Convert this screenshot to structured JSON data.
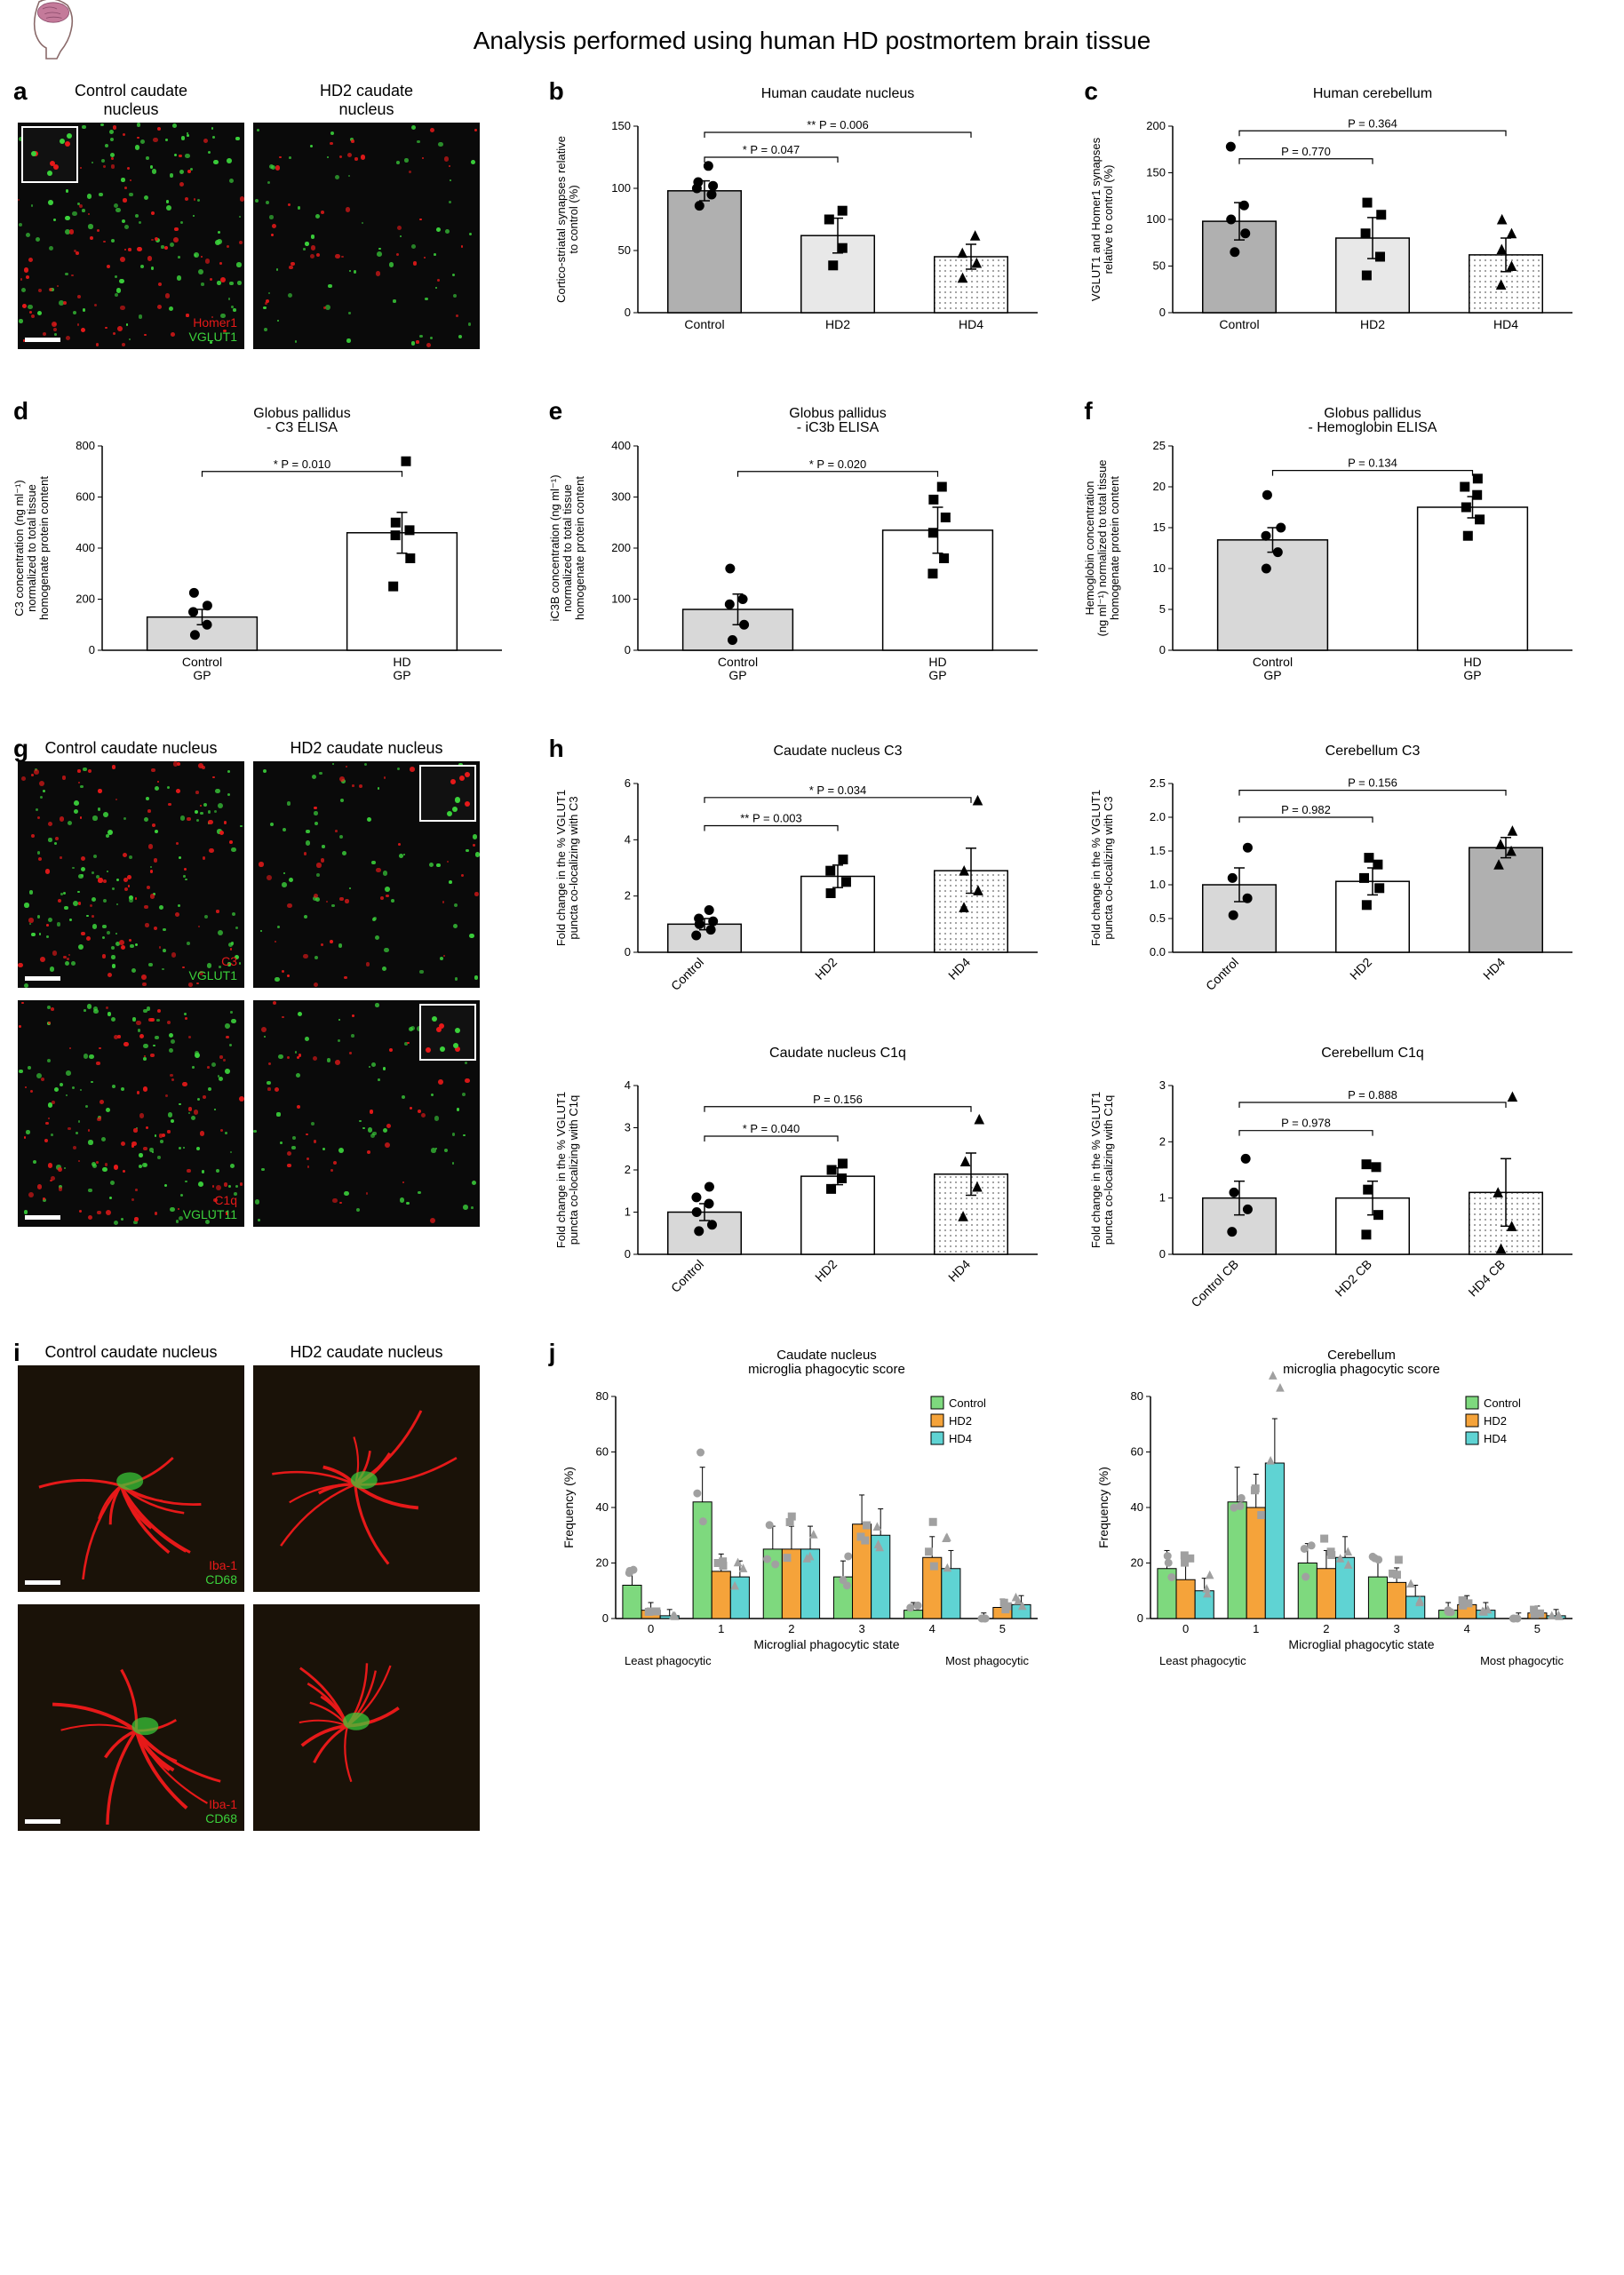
{
  "page_title": "Analysis performed using human HD postmortem brain tissue",
  "colors": {
    "bar_gray": "#b0b0b0",
    "bar_light": "#e8e8e8",
    "bar_hatch": "#cccccc",
    "text": "#000000",
    "axis": "#000000",
    "red": "#e61919",
    "green": "#3bd13b",
    "legend_green": "#7ed97e",
    "legend_orange": "#f5a33a",
    "legend_cyan": "#5fd3d3",
    "point_gray": "#a0a0a0"
  },
  "panel_a": {
    "letter": "a",
    "left_header": "Control caudate\nnucleus",
    "right_header": "HD2 caudate\nnucleus",
    "label_red": "Homer1",
    "label_green": "VGLUT1"
  },
  "panel_b": {
    "letter": "b",
    "title": "Human caudate nucleus",
    "ylabel": "Cortico-striatal synapses relative\nto control (%)",
    "categories": [
      "Control",
      "HD2",
      "HD4"
    ],
    "values": [
      98,
      62,
      45
    ],
    "errors": [
      8,
      14,
      10
    ],
    "points": [
      [
        86,
        95,
        100,
        102,
        105,
        118
      ],
      [
        38,
        52,
        75,
        82
      ],
      [
        28,
        40,
        48,
        62
      ]
    ],
    "markers": [
      "circle",
      "square",
      "triangle"
    ],
    "sig": [
      {
        "i1": 0,
        "i2": 2,
        "label": "** P = 0.006",
        "y": 145
      },
      {
        "i1": 0,
        "i2": 1,
        "label": "* P = 0.047",
        "y": 125
      }
    ],
    "ylim": [
      0,
      150
    ],
    "ytick": 50,
    "fills": [
      "#b0b0b0",
      "#e8e8e8",
      "pattern"
    ]
  },
  "panel_c": {
    "letter": "c",
    "title": "Human cerebellum",
    "ylabel": "VGLUT1 and Homer1 synapses\nrelative to control (%)",
    "categories": [
      "Control",
      "HD2",
      "HD4"
    ],
    "values": [
      98,
      80,
      62
    ],
    "errors": [
      20,
      22,
      18
    ],
    "points": [
      [
        65,
        85,
        100,
        115,
        178
      ],
      [
        40,
        60,
        85,
        105,
        118
      ],
      [
        30,
        50,
        68,
        85,
        100
      ]
    ],
    "markers": [
      "circle",
      "square",
      "triangle"
    ],
    "sig": [
      {
        "i1": 0,
        "i2": 2,
        "label": "P = 0.364",
        "y": 195
      },
      {
        "i1": 0,
        "i2": 1,
        "label": "P = 0.770",
        "y": 165
      }
    ],
    "ylim": [
      0,
      200
    ],
    "ytick": 50,
    "fills": [
      "#b0b0b0",
      "#e8e8e8",
      "pattern"
    ]
  },
  "panel_d": {
    "letter": "d",
    "title": "Globus pallidus\n- C3 ELISA",
    "ylabel": "C3 concentration (ng ml⁻¹)\nnormalized to total tissue\nhomogenate protein content",
    "categories": [
      "Control\nGP",
      "HD\nGP"
    ],
    "values": [
      130,
      460
    ],
    "errors": [
      30,
      80
    ],
    "points": [
      [
        60,
        100,
        150,
        175,
        225
      ],
      [
        250,
        360,
        450,
        470,
        500,
        740
      ]
    ],
    "markers": [
      "circle",
      "square"
    ],
    "sig": [
      {
        "i1": 0,
        "i2": 1,
        "label": "* P = 0.010",
        "y": 700,
        "side": "mid"
      }
    ],
    "ylim": [
      0,
      800
    ],
    "ytick": 200,
    "fills": [
      "#d8d8d8",
      "#ffffff"
    ]
  },
  "panel_e": {
    "letter": "e",
    "title": "Globus pallidus\n- iC3b ELISA",
    "ylabel": "iC3B concentration (ng ml⁻¹)\nnormalized to total tissue\nhomogenate protein content",
    "categories": [
      "Control\nGP",
      "HD\nGP"
    ],
    "values": [
      80,
      235
    ],
    "errors": [
      30,
      45
    ],
    "points": [
      [
        20,
        50,
        90,
        100,
        160
      ],
      [
        150,
        180,
        230,
        260,
        295,
        320
      ]
    ],
    "markers": [
      "circle",
      "square"
    ],
    "sig": [
      {
        "i1": 0,
        "i2": 1,
        "label": "* P = 0.020",
        "y": 350,
        "side": "mid"
      }
    ],
    "ylim": [
      0,
      400
    ],
    "ytick": 100,
    "fills": [
      "#d8d8d8",
      "#ffffff"
    ]
  },
  "panel_f": {
    "letter": "f",
    "title": "Globus pallidus\n- Hemoglobin ELISA",
    "ylabel": "Hemoglobin concentration\n(ng ml⁻¹) normalized to total tissue\nhomogenate protein content",
    "categories": [
      "Control\nGP",
      "HD\nGP"
    ],
    "values": [
      13.5,
      17.5
    ],
    "errors": [
      1.5,
      1.3
    ],
    "points": [
      [
        10,
        12,
        14,
        15,
        19
      ],
      [
        14,
        16,
        17.5,
        19,
        20,
        21
      ]
    ],
    "markers": [
      "circle",
      "square"
    ],
    "sig": [
      {
        "i1": 0,
        "i2": 1,
        "label": "P = 0.134",
        "y": 22,
        "side": "mid"
      }
    ],
    "ylim": [
      0,
      25
    ],
    "ytick": 5,
    "fills": [
      "#d8d8d8",
      "#ffffff"
    ]
  },
  "panel_g": {
    "letter": "g",
    "left_header": "Control caudate nucleus",
    "right_header": "HD2 caudate nucleus",
    "row1_red": "C3",
    "row1_green": "VGLUT1",
    "row2_red": "C1q",
    "row2_green": "VGLUT11"
  },
  "panel_h": {
    "letter": "h",
    "charts": [
      {
        "title": "Caudate nucleus C3",
        "ylabel": "Fold change in the % VGLUT1\npuncta co-localizing with C3",
        "categories": [
          "Control",
          "HD2",
          "HD4"
        ],
        "values": [
          1.0,
          2.7,
          2.9
        ],
        "errors": [
          0.2,
          0.4,
          0.8
        ],
        "points": [
          [
            0.6,
            0.8,
            1.0,
            1.1,
            1.2,
            1.5
          ],
          [
            2.1,
            2.5,
            2.9,
            3.3
          ],
          [
            1.6,
            2.2,
            2.9,
            5.4
          ]
        ],
        "markers": [
          "circle",
          "square",
          "triangle"
        ],
        "sig": [
          {
            "i1": 0,
            "i2": 2,
            "label": "* P = 0.034",
            "y": 5.5
          },
          {
            "i1": 0,
            "i2": 1,
            "label": "** P = 0.003",
            "y": 4.5
          }
        ],
        "ylim": [
          0,
          6
        ],
        "ytick": 2,
        "fills": [
          "#d8d8d8",
          "#ffffff",
          "pattern"
        ]
      },
      {
        "title": "Cerebellum C3",
        "ylabel": "Fold change in the % VGLUT1\npuncta co-localizing with C3",
        "categories": [
          "Control",
          "HD2",
          "HD4"
        ],
        "values": [
          1.0,
          1.05,
          1.55
        ],
        "errors": [
          0.25,
          0.2,
          0.15
        ],
        "points": [
          [
            0.55,
            0.8,
            1.1,
            1.55
          ],
          [
            0.7,
            0.95,
            1.1,
            1.3,
            1.4
          ],
          [
            1.3,
            1.5,
            1.6,
            1.8
          ]
        ],
        "markers": [
          "circle",
          "square",
          "triangle"
        ],
        "sig": [
          {
            "i1": 0,
            "i2": 2,
            "label": "P = 0.156",
            "y": 2.4
          },
          {
            "i1": 0,
            "i2": 1,
            "label": "P = 0.982",
            "y": 2.0
          }
        ],
        "ylim": [
          0,
          2.5
        ],
        "ytick": 0.5,
        "fills": [
          "#d8d8d8",
          "#ffffff",
          "#b0b0b0"
        ]
      },
      {
        "title": "Caudate nucleus C1q",
        "ylabel": "Fold change in the % VGLUT1\npuncta co-localizing with C1q",
        "categories": [
          "Control",
          "HD2",
          "HD4"
        ],
        "values": [
          1.0,
          1.85,
          1.9
        ],
        "errors": [
          0.2,
          0.2,
          0.5
        ],
        "points": [
          [
            0.55,
            0.7,
            1.0,
            1.2,
            1.35,
            1.6
          ],
          [
            1.55,
            1.8,
            2.0,
            2.15
          ],
          [
            0.9,
            1.6,
            2.2,
            3.2
          ]
        ],
        "markers": [
          "circle",
          "square",
          "triangle"
        ],
        "sig": [
          {
            "i1": 0,
            "i2": 2,
            "label": "P = 0.156",
            "y": 3.5
          },
          {
            "i1": 0,
            "i2": 1,
            "label": "* P = 0.040",
            "y": 2.8
          }
        ],
        "ylim": [
          0,
          4
        ],
        "ytick": 1,
        "fills": [
          "#d8d8d8",
          "#ffffff",
          "pattern"
        ]
      },
      {
        "title": "Cerebellum C1q",
        "ylabel": "Fold change in the % VGLUT1\npuncta co-localizing with C1q",
        "categories": [
          "Control CB",
          "HD2 CB",
          "HD4 CB"
        ],
        "values": [
          1.0,
          1.0,
          1.1
        ],
        "errors": [
          0.3,
          0.3,
          0.6
        ],
        "points": [
          [
            0.4,
            0.8,
            1.1,
            1.7
          ],
          [
            0.35,
            0.7,
            1.15,
            1.55,
            1.6
          ],
          [
            0.1,
            0.5,
            1.1,
            2.8
          ]
        ],
        "markers": [
          "circle",
          "square",
          "triangle"
        ],
        "sig": [
          {
            "i1": 0,
            "i2": 2,
            "label": "P = 0.888",
            "y": 2.7
          },
          {
            "i1": 0,
            "i2": 1,
            "label": "P = 0.978",
            "y": 2.2
          }
        ],
        "ylim": [
          0,
          3
        ],
        "ytick": 1,
        "fills": [
          "#d8d8d8",
          "#ffffff",
          "pattern"
        ]
      }
    ]
  },
  "panel_i": {
    "letter": "i",
    "left_header": "Control caudate nucleus",
    "right_header": "HD2 caudate nucleus",
    "label_red": "Iba-1",
    "label_green": "CD68"
  },
  "panel_j": {
    "letter": "j",
    "charts": [
      {
        "title": "Caudate nucleus\nmicroglia phagocytic score",
        "ylabel": "Frequency (%)",
        "xlabel": "Microglial phagocytic state",
        "xsublabel_l": "Least phagocytic",
        "xsublabel_r": "Most phagocytic",
        "states": [
          0,
          1,
          2,
          3,
          4,
          5
        ],
        "series": [
          {
            "name": "Control",
            "color": "#7ed97e",
            "values": [
              12,
              42,
              25,
              15,
              3,
              0
            ]
          },
          {
            "name": "HD2",
            "color": "#f5a33a",
            "values": [
              3,
              17,
              25,
              34,
              22,
              4
            ]
          },
          {
            "name": "HD4",
            "color": "#5fd3d3",
            "values": [
              1,
              15,
              25,
              30,
              18,
              5
            ]
          }
        ],
        "ylim": [
          0,
          80
        ],
        "ytick": 20
      },
      {
        "title": "Cerebellum\nmicroglia phagocytic score",
        "ylabel": "Frequency (%)",
        "xlabel": "Microglial phagocytic state",
        "xsublabel_l": "Least phagocytic",
        "xsublabel_r": "Most phagocytic",
        "states": [
          0,
          1,
          2,
          3,
          4,
          5
        ],
        "series": [
          {
            "name": "Control",
            "color": "#7ed97e",
            "values": [
              18,
              42,
              20,
              15,
              3,
              0
            ]
          },
          {
            "name": "HD2",
            "color": "#f5a33a",
            "values": [
              14,
              40,
              18,
              13,
              5,
              2
            ]
          },
          {
            "name": "HD4",
            "color": "#5fd3d3",
            "values": [
              10,
              56,
              22,
              8,
              3,
              1
            ]
          }
        ],
        "ylim": [
          0,
          80
        ],
        "ytick": 20
      }
    ]
  }
}
